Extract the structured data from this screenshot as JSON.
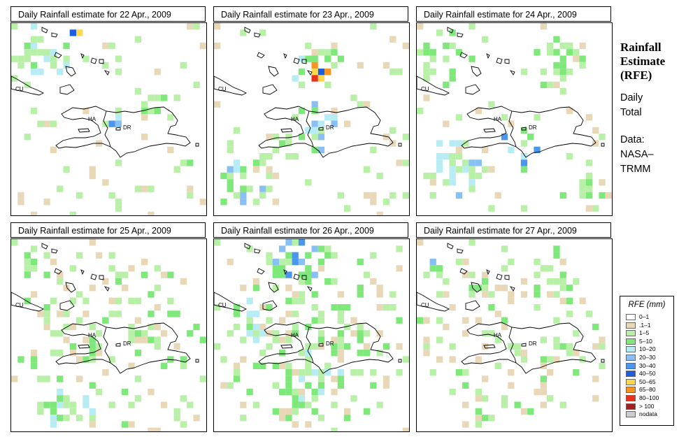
{
  "panels": [
    {
      "title": "Daily Rainfall estimate for  22 Apr., 2009",
      "labels": [
        "CU",
        "HA",
        "DR"
      ]
    },
    {
      "title": "Daily Rainfall estimate for  23 Apr., 2009",
      "labels": [
        "CU",
        "HA",
        "DR"
      ]
    },
    {
      "title": "Daily Rainfall estimate for  24 Apr., 2009",
      "labels": [
        "CU",
        "HA",
        "DR"
      ]
    },
    {
      "title": "Daily Rainfall estimate for  25 Apr., 2009",
      "labels": [
        "CU",
        "HA",
        "DR"
      ]
    },
    {
      "title": "Daily Rainfall estimate for  26 Apr., 2009",
      "labels": [
        "CU",
        "HA",
        "DR"
      ]
    },
    {
      "title": "Daily Rainfall estimate for  27 Apr., 2009",
      "labels": [
        "CU",
        "HA",
        "DR"
      ]
    }
  ],
  "side": {
    "title_lines": [
      "Rainfall",
      "Estimate",
      "(RFE)"
    ],
    "daily_lines": [
      "Daily",
      "Total"
    ],
    "data_lines": [
      "Data:",
      "NASA–",
      "TRMM"
    ]
  },
  "legend": {
    "title": "RFE (mm)",
    "items": [
      {
        "label": "0–1",
        "color": "#ffffff"
      },
      {
        "label": ".1–1",
        "color": "#e8d8b8"
      },
      {
        "label": "1–5",
        "color": "#b8f0a8"
      },
      {
        "label": "5–10",
        "color": "#7ee87a"
      },
      {
        "label": "10–20",
        "color": "#b8ecf4"
      },
      {
        "label": "20–30",
        "color": "#88c0f4"
      },
      {
        "label": "30–40",
        "color": "#4a96ec"
      },
      {
        "label": "40–50",
        "color": "#1c5ee0"
      },
      {
        "label": "50–65",
        "color": "#fcd84a"
      },
      {
        "label": "65–80",
        "color": "#f89420"
      },
      {
        "label": "80–100",
        "color": "#e8301c"
      },
      {
        "label": "> 100",
        "color": "#a02020"
      },
      {
        "label": "nodata",
        "color": "#cccccc"
      }
    ]
  }
}
